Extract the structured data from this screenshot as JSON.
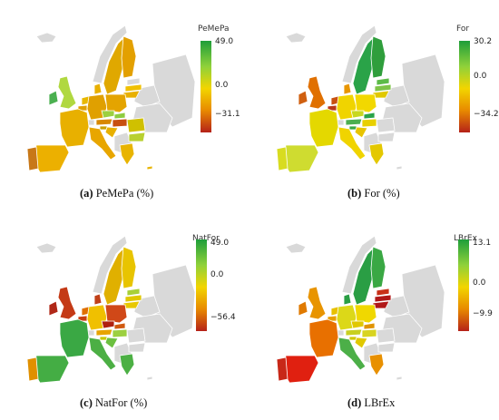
{
  "panels": [
    {
      "id": "a",
      "legend_title": "PeMePa",
      "max": "49.0",
      "mid": "0.0",
      "min": "−31.1",
      "caption_letter": "(a)",
      "caption_text": "PeMePa (%)"
    },
    {
      "id": "b",
      "legend_title": "For",
      "max": "30.2",
      "mid": "0.0",
      "min": "−34.2",
      "caption_letter": "(b)",
      "caption_text": "For (%)"
    },
    {
      "id": "c",
      "legend_title": "NatFor",
      "max": "49.0",
      "mid": "0.0",
      "min": "−56.4",
      "caption_letter": "(c)",
      "caption_text": "NatFor (%)"
    },
    {
      "id": "d",
      "legend_title": "LBrEx",
      "max": "13.1",
      "mid": "0.0",
      "min": "−9.9",
      "caption_letter": "(d)",
      "caption_text": "LBrEx"
    }
  ],
  "colors": {
    "no_data": "#d9d9d9",
    "strong_positive": "#1e9e3a",
    "positive": "#8fd13a",
    "neutral": "#f2d500",
    "negative": "#e88a00",
    "strong_negative": "#b52218"
  },
  "map_fills": {
    "a": {
      "iceland": "#d9d9d9",
      "ireland": "#4bb050",
      "uk": "#b0d840",
      "norway": "#d9d9d9",
      "sweden": "#e0a800",
      "finland": "#e3a000",
      "estonia": "#d9d9d9",
      "latvia": "#f0c000",
      "lithuania": "#e8b000",
      "denmark": "#e8b000",
      "netherlands": "#e8b800",
      "belgium": "#e0a000",
      "germany": "#e0a000",
      "poland": "#e4a400",
      "czechia": "#9cd040",
      "slovakia": "#8ecc40",
      "austria": "#d88800",
      "switzerland": "#d9d9d9",
      "hungary": "#c85010",
      "france": "#e8b000",
      "spain": "#ecb000",
      "portugal": "#c87818",
      "italy": "#e8a600",
      "slovenia": "#caa000",
      "croatia": "#e8b000",
      "romania": "#d0c000",
      "bulgaria": "#b8d030",
      "greece": "#e8b400",
      "belarus": "#d9d9d9",
      "ukraine": "#d9d9d9",
      "balkans": "#d9d9d9",
      "russia_corner": "#d9d9d9",
      "cyprus": "#e8b400"
    },
    "b": {
      "iceland": "#d9d9d9",
      "ireland": "#d06010",
      "uk": "#e07000",
      "norway": "#d9d9d9",
      "sweden": "#2aa348",
      "finland": "#2f9e3c",
      "estonia": "#5cbb48",
      "latvia": "#7ec448",
      "lithuania": "#e0c800",
      "denmark": "#e89600",
      "netherlands": "#c85010",
      "belgium": "#b83818",
      "germany": "#f0d400",
      "poland": "#f2d800",
      "czechia": "#c8d820",
      "slovakia": "#2aa348",
      "austria": "#4caf50",
      "switzerland": "#d9d9d9",
      "hungary": "#e8d000",
      "france": "#e4d800",
      "spain": "#cfdc30",
      "portugal": "#d8dc20",
      "italy": "#f0d400",
      "slovenia": "#3aa844",
      "croatia": "#e8c400",
      "romania": "#d9d9d9",
      "bulgaria": "#d9d9d9",
      "greece": "#e4c800",
      "belarus": "#d9d9d9",
      "ukraine": "#d9d9d9",
      "balkans": "#d9d9d9",
      "russia_corner": "#d9d9d9",
      "cyprus": "#d9d9d9"
    },
    "c": {
      "iceland": "#d9d9d9",
      "ireland": "#b02818",
      "uk": "#c43a16",
      "norway": "#d9d9d9",
      "sweden": "#e0b000",
      "finland": "#e8c400",
      "estonia": "#a8d038",
      "latvia": "#e0c800",
      "lithuania": "#e8c800",
      "denmark": "#c04018",
      "netherlands": "#e07000",
      "belgium": "#c84010",
      "germany": "#f0c000",
      "poland": "#d04818",
      "czechia": "#b02010",
      "slovakia": "#d05a10",
      "austria": "#e8a400",
      "switzerland": "#d9d9d9",
      "hungary": "#9cd040",
      "france": "#3aa844",
      "spain": "#44ad44",
      "portugal": "#e09000",
      "italy": "#4caf44",
      "slovenia": "#c8c800",
      "croatia": "#6cc040",
      "romania": "#d9d9d9",
      "bulgaria": "#d9d9d9",
      "greece": "#4cb044",
      "belarus": "#d9d9d9",
      "ukraine": "#d9d9d9",
      "balkans": "#d9d9d9",
      "russia_corner": "#d9d9d9",
      "cyprus": "#d9d9d9"
    },
    "d": {
      "iceland": "#d9d9d9",
      "ireland": "#e07a00",
      "uk": "#e89400",
      "norway": "#d9d9d9",
      "sweden": "#2a9e44",
      "finland": "#3aa844",
      "estonia": "#c83018",
      "latvia": "#b01818",
      "lithuania": "#b01818",
      "denmark": "#2a9e44",
      "netherlands": "#e8c000",
      "belgium": "#e8a000",
      "germany": "#dcd818",
      "poland": "#f0d800",
      "czechia": "#e0c800",
      "slovakia": "#e09400",
      "austria": "#c8d020",
      "switzerland": "#d9d9d9",
      "hungary": "#d8d420",
      "france": "#e87000",
      "spain": "#e02010",
      "portugal": "#c82818",
      "italy": "#4caf48",
      "slovenia": "#d0c800",
      "croatia": "#e0c800",
      "romania": "#d9d9d9",
      "bulgaria": "#d9d9d9",
      "greece": "#e89000",
      "belarus": "#d9d9d9",
      "ukraine": "#d9d9d9",
      "balkans": "#d9d9d9",
      "russia_corner": "#d9d9d9",
      "cyprus": "#d9d9d9"
    }
  }
}
